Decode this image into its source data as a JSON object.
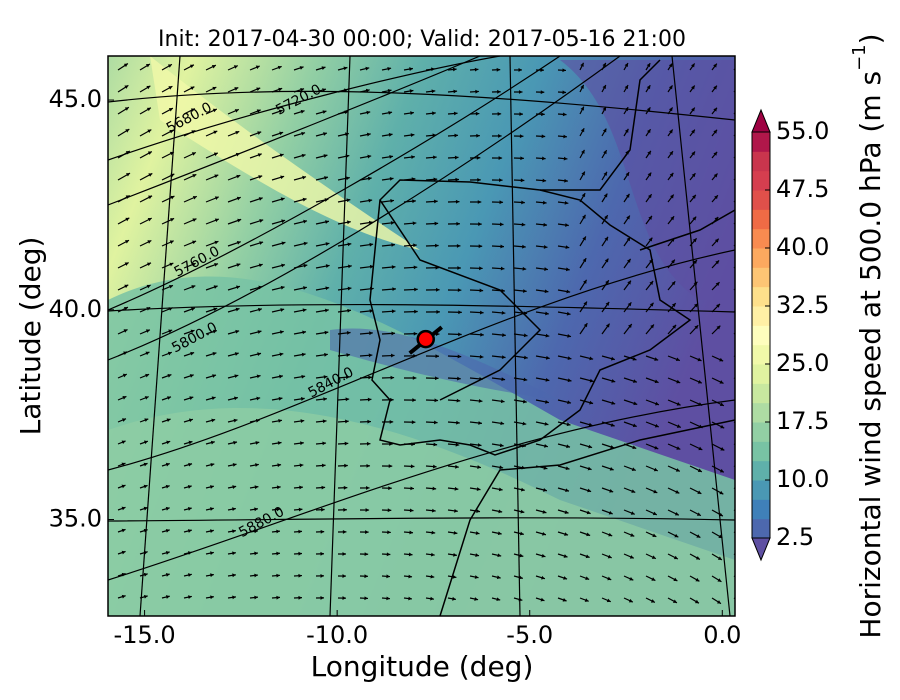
{
  "chart_data": {
    "type": "map",
    "title": "Init: 2017-04-30 00:00; Valid: 2017-05-16 21:00",
    "x_label": "Longitude (deg)",
    "y_label": "Latitude (deg)",
    "xlim": [
      -15.95,
      0.33
    ],
    "ylim": [
      32.7,
      46.05
    ],
    "xticks": [
      {
        "value": -15,
        "label": "-15.0"
      },
      {
        "value": -10,
        "label": "-10.0"
      },
      {
        "value": -5,
        "label": "-5.0"
      },
      {
        "value": 0,
        "label": "0.0"
      }
    ],
    "yticks": [
      {
        "value": 35,
        "label": "35.0"
      },
      {
        "value": 40,
        "label": "40.0"
      },
      {
        "value": 45,
        "label": "45.0"
      }
    ],
    "colorbar": {
      "label": "Horizontal wind speed at 500.0 hPa (m s",
      "label_sup": "−1",
      "label_end": ")",
      "clim": [
        2.5,
        55
      ],
      "ticks": [
        {
          "value": 2.5,
          "label": "2.5"
        },
        {
          "value": 10,
          "label": "10.0"
        },
        {
          "value": 17.5,
          "label": "17.5"
        },
        {
          "value": 25,
          "label": "25.0"
        },
        {
          "value": 32.5,
          "label": "32.5"
        },
        {
          "value": 40,
          "label": "40.0"
        },
        {
          "value": 47.5,
          "label": "47.5"
        },
        {
          "value": 55,
          "label": "55.0"
        }
      ],
      "colors": [
        "#4d68ae",
        "#3f80b9",
        "#4a98b4",
        "#5fb0aa",
        "#78c3a4",
        "#92cfa4",
        "#aedca3",
        "#c8e89f",
        "#e0f3a0",
        "#f1f9a9",
        "#fefebd",
        "#fff0a5",
        "#fee08b",
        "#fdc574",
        "#fca95f",
        "#f88b50",
        "#ef6b45",
        "#e0504a",
        "#d53e4f",
        "#c9354d",
        "#b0174a"
      ],
      "under_color": "#5e4fa2",
      "over_color": "#9e0142"
    },
    "contour_labels": [
      {
        "label": "5680.0",
        "x": -13.84,
        "y": 44.57
      },
      {
        "label": "5720.0",
        "x": -11.0,
        "y": 45.0
      },
      {
        "label": "5760.0",
        "x": -13.64,
        "y": 41.14
      },
      {
        "label": "5800.0",
        "x": -13.7,
        "y": 39.33
      },
      {
        "label": "5840.0",
        "x": -10.16,
        "y": 38.26
      },
      {
        "label": "5880.0",
        "x": -11.96,
        "y": 34.93
      }
    ],
    "marker": {
      "x": -7.7,
      "y": 39.3,
      "color": "#ff0000"
    }
  }
}
